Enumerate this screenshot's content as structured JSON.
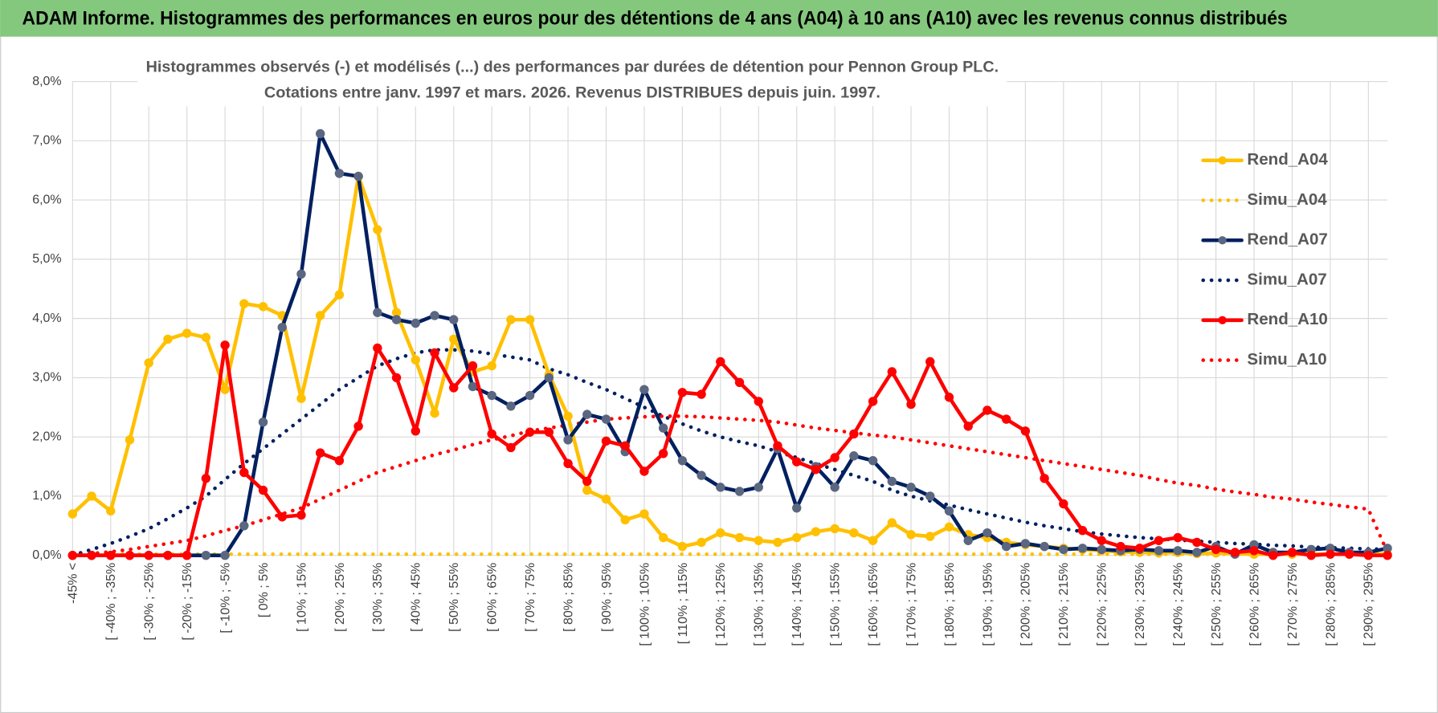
{
  "header": {
    "title": "ADAM Informe. Histogrammes des performances en euros pour des détentions de 4 ans (A04) à 10 ans (A10) avec les revenus connus distribués"
  },
  "chart_data": {
    "type": "line",
    "title": "Histogrammes observés (-) et modélisés (...) des performances par durées de détention pour Pennon Group PLC.",
    "subtitle": "Cotations entre janv. 1997 et mars. 2026. Revenus DISTRIBUES depuis juin. 1997.",
    "categories": [
      "-45% <",
      null,
      "[ -40% ; -35%",
      null,
      "[ -30% ; -25%",
      null,
      "[ -20% ; -15%",
      null,
      "[ -10% ; -5%",
      null,
      "[ 0% ; 5%",
      null,
      "[ 10% ; 15%",
      null,
      "[ 20% ; 25%",
      null,
      "[ 30% ; 35%",
      null,
      "[ 40% ; 45%",
      null,
      "[ 50% ; 55%",
      null,
      "[ 60% ; 65%",
      null,
      "[ 70% ; 75%",
      null,
      "[ 80% ; 85%",
      null,
      "[ 90% ; 95%",
      null,
      "[ 100% ; 105%",
      null,
      "[ 110% ; 115%",
      null,
      "[ 120% ; 125%",
      null,
      "[ 130% ; 135%",
      null,
      "[ 140% ; 145%",
      null,
      "[ 150% ; 155%",
      null,
      "[ 160% ; 165%",
      null,
      "[ 170% ; 175%",
      null,
      "[ 180% ; 185%",
      null,
      "[ 190% ; 195%",
      null,
      "[ 200% ; 205%",
      null,
      "[ 210% ; 215%",
      null,
      "[ 220% ; 225%",
      null,
      "[ 230% ; 235%",
      null,
      "[ 240% ; 245%",
      null,
      "[ 250% ; 255%",
      null,
      "[ 260% ; 265%",
      null,
      "[ 270% ; 275%",
      null,
      "[ 280% ; 285%",
      null,
      "[ 290% ; 295%",
      null
    ],
    "series": [
      {
        "name": "Rend_A04",
        "color": "#ffc000",
        "line_style": "solid",
        "markers": true,
        "marker_color": "#ffc000",
        "values": [
          0.7,
          1.0,
          0.75,
          1.95,
          3.25,
          3.65,
          3.75,
          3.68,
          2.8,
          4.25,
          4.2,
          4.05,
          2.65,
          4.05,
          4.4,
          6.4,
          5.5,
          4.1,
          3.3,
          2.4,
          3.65,
          3.1,
          3.2,
          3.98,
          3.98,
          3.05,
          2.35,
          1.1,
          0.95,
          0.6,
          0.7,
          0.3,
          0.15,
          0.22,
          0.38,
          0.3,
          0.25,
          0.22,
          0.3,
          0.4,
          0.45,
          0.38,
          0.25,
          0.55,
          0.35,
          0.32,
          0.48,
          0.35,
          0.3,
          0.22,
          0.18,
          0.15,
          0.12,
          0.1,
          0.08,
          0.06,
          0.05,
          0.04,
          0.05,
          0.03,
          0.04,
          0.03,
          0.02,
          0.02,
          0.02,
          0.02,
          0.02,
          0.02,
          0.02,
          0.02
        ]
      },
      {
        "name": "Simu_A04",
        "color": "#ffc000",
        "line_style": "dotted",
        "markers": false,
        "values": [
          0.02,
          0.02,
          0.02,
          0.02,
          0.02,
          0.02,
          0.02,
          0.02,
          0.02,
          0.02,
          0.02,
          0.02,
          0.02,
          0.02,
          0.02,
          0.02,
          0.02,
          0.02,
          0.02,
          0.02,
          0.02,
          0.02,
          0.02,
          0.02,
          0.02,
          0.02,
          0.02,
          0.02,
          0.02,
          0.02,
          0.02,
          0.02,
          0.02,
          0.02,
          0.02,
          0.02,
          0.02,
          0.02,
          0.02,
          0.02,
          0.02,
          0.02,
          0.02,
          0.02,
          0.02,
          0.02,
          0.02,
          0.02,
          0.02,
          0.02,
          0.02,
          0.02,
          0.02,
          0.02,
          0.02,
          0.02,
          0.02,
          0.02,
          0.02,
          0.02,
          0.02,
          0.02,
          0.02,
          0.02,
          0.02,
          0.02,
          0.02,
          0.02,
          0.02,
          0.02
        ]
      },
      {
        "name": "Rend_A07",
        "color": "#002060",
        "line_style": "solid",
        "markers": true,
        "marker_color": "#5b6780",
        "values": [
          0,
          0,
          0,
          0,
          0,
          0,
          0,
          0,
          0,
          0.5,
          2.25,
          3.85,
          4.75,
          7.12,
          6.45,
          6.4,
          4.1,
          3.98,
          3.92,
          4.05,
          3.98,
          2.85,
          2.7,
          2.52,
          2.7,
          3.0,
          1.95,
          2.38,
          2.3,
          1.75,
          2.8,
          2.15,
          1.6,
          1.35,
          1.15,
          1.08,
          1.15,
          1.8,
          0.8,
          1.5,
          1.15,
          1.68,
          1.6,
          1.25,
          1.15,
          1.0,
          0.75,
          0.25,
          0.38,
          0.15,
          0.2,
          0.15,
          0.1,
          0.12,
          0.1,
          0.08,
          0.1,
          0.08,
          0.08,
          0.05,
          0.15,
          0.02,
          0.18,
          0.05,
          0.05,
          0.1,
          0.12,
          0.05,
          0.05,
          0.12
        ]
      },
      {
        "name": "Simu_A07",
        "color": "#002060",
        "line_style": "dotted",
        "markers": false,
        "values": [
          0,
          0.1,
          0.2,
          0.32,
          0.45,
          0.62,
          0.8,
          1.0,
          1.28,
          1.55,
          1.8,
          2.05,
          2.3,
          2.55,
          2.8,
          3.0,
          3.2,
          3.32,
          3.42,
          3.47,
          3.47,
          3.45,
          3.4,
          3.35,
          3.3,
          3.15,
          3.05,
          2.92,
          2.8,
          2.65,
          2.5,
          2.35,
          2.22,
          2.1,
          2.0,
          1.92,
          1.85,
          1.75,
          1.65,
          1.55,
          1.45,
          1.35,
          1.25,
          1.1,
          1.0,
          0.92,
          0.85,
          0.77,
          0.7,
          0.63,
          0.56,
          0.5,
          0.45,
          0.4,
          0.36,
          0.33,
          0.3,
          0.28,
          0.26,
          0.24,
          0.22,
          0.2,
          0.19,
          0.17,
          0.16,
          0.14,
          0.13,
          0.12,
          0.11,
          0.1
        ]
      },
      {
        "name": "Rend_A10",
        "color": "#ff0000",
        "line_style": "solid",
        "markers": true,
        "marker_color": "#ff0000",
        "values": [
          0,
          0,
          0,
          0,
          0,
          0,
          0,
          1.3,
          3.55,
          1.4,
          1.1,
          0.65,
          0.68,
          1.73,
          1.6,
          2.18,
          3.5,
          3.0,
          2.1,
          3.42,
          2.83,
          3.2,
          2.05,
          1.82,
          2.08,
          2.08,
          1.55,
          1.25,
          1.93,
          1.85,
          1.42,
          1.72,
          2.75,
          2.72,
          3.27,
          2.92,
          2.6,
          1.85,
          1.58,
          1.45,
          1.65,
          2.05,
          2.6,
          3.1,
          2.55,
          3.27,
          2.67,
          2.18,
          2.45,
          2.3,
          2.1,
          1.3,
          0.87,
          0.42,
          0.25,
          0.15,
          0.12,
          0.25,
          0.3,
          0.22,
          0.1,
          0.05,
          0.08,
          0,
          0.05,
          0,
          0.02,
          0.02,
          0,
          0
        ]
      },
      {
        "name": "Simu_A10",
        "color": "#ff0000",
        "line_style": "dotted",
        "markers": false,
        "values": [
          0,
          0.03,
          0.06,
          0.1,
          0.15,
          0.2,
          0.25,
          0.33,
          0.42,
          0.5,
          0.6,
          0.7,
          0.8,
          0.95,
          1.1,
          1.25,
          1.4,
          1.5,
          1.6,
          1.7,
          1.78,
          1.87,
          1.95,
          2.02,
          2.1,
          2.15,
          2.2,
          2.25,
          2.3,
          2.32,
          2.34,
          2.35,
          2.35,
          2.34,
          2.32,
          2.3,
          2.28,
          2.25,
          2.2,
          2.15,
          2.11,
          2.07,
          2.03,
          2.0,
          1.95,
          1.9,
          1.85,
          1.8,
          1.75,
          1.7,
          1.65,
          1.6,
          1.55,
          1.5,
          1.45,
          1.4,
          1.35,
          1.28,
          1.22,
          1.18,
          1.12,
          1.07,
          1.03,
          0.98,
          0.95,
          0.9,
          0.86,
          0.82,
          0.78,
          0.05
        ]
      }
    ],
    "ylim": [
      0,
      8
    ],
    "yticks": [
      {
        "value": 0,
        "label": "0,0%"
      },
      {
        "value": 1,
        "label": "1,0%"
      },
      {
        "value": 2,
        "label": "2,0%"
      },
      {
        "value": 3,
        "label": "3,0%"
      },
      {
        "value": 4,
        "label": "4,0%"
      },
      {
        "value": 5,
        "label": "5,0%"
      },
      {
        "value": 6,
        "label": "6,0%"
      },
      {
        "value": 7,
        "label": "7,0%"
      },
      {
        "value": 8,
        "label": "8,0%"
      }
    ],
    "grid": true,
    "legend": "right"
  }
}
